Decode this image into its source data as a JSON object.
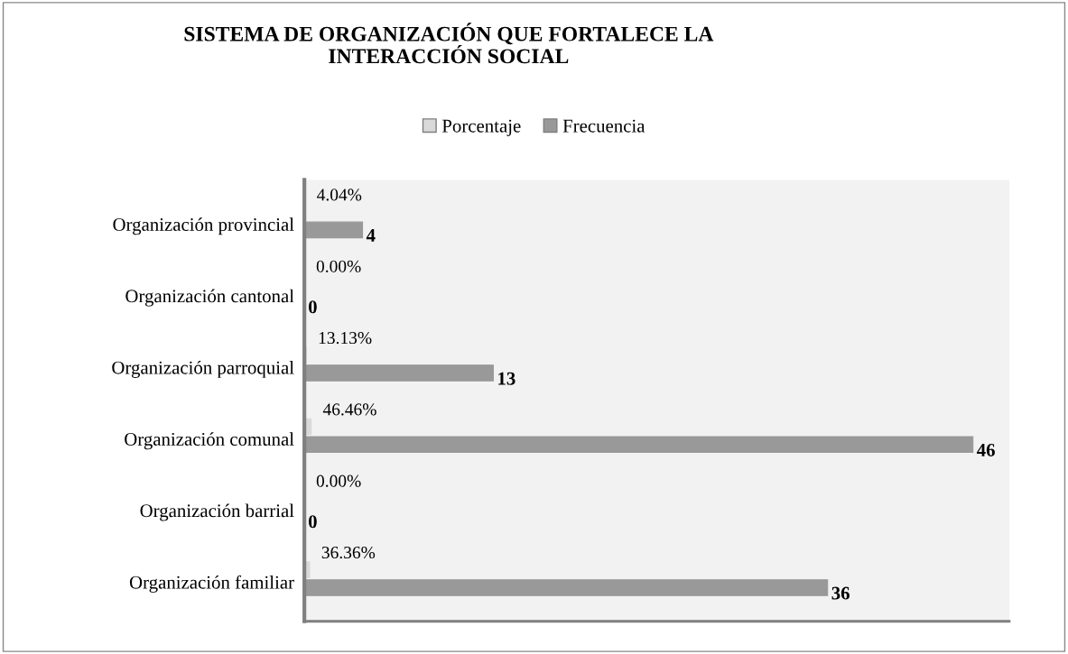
{
  "chart_data": {
    "type": "bar",
    "orientation": "horizontal",
    "title": "SISTEMA DE ORGANIZACIÓN QUE FORTALECE LA\nINTERACCIÓN SOCIAL",
    "categories": [
      "Organización provincial",
      "Organización cantonal",
      "Organización parroquial",
      "Organización comunal",
      "Organización barrial",
      "Organización familiar"
    ],
    "series": [
      {
        "name": "Porcentaje",
        "color": "#d9d9d9",
        "values": [
          0.0404,
          0,
          0.1313,
          0.4646,
          0,
          0.3636
        ],
        "value_labels": [
          "4.04%",
          "0.00%",
          "13.13%",
          "46.46%",
          "0.00%",
          "36.36%"
        ]
      },
      {
        "name": "Frecuencia",
        "color": "#999999",
        "values": [
          4,
          0,
          13,
          46,
          0,
          36
        ],
        "value_labels": [
          "4",
          "0",
          "13",
          "46",
          "0",
          "36"
        ]
      }
    ],
    "xlim": [
      0,
      48.5
    ],
    "legend": "top",
    "grid": false
  }
}
